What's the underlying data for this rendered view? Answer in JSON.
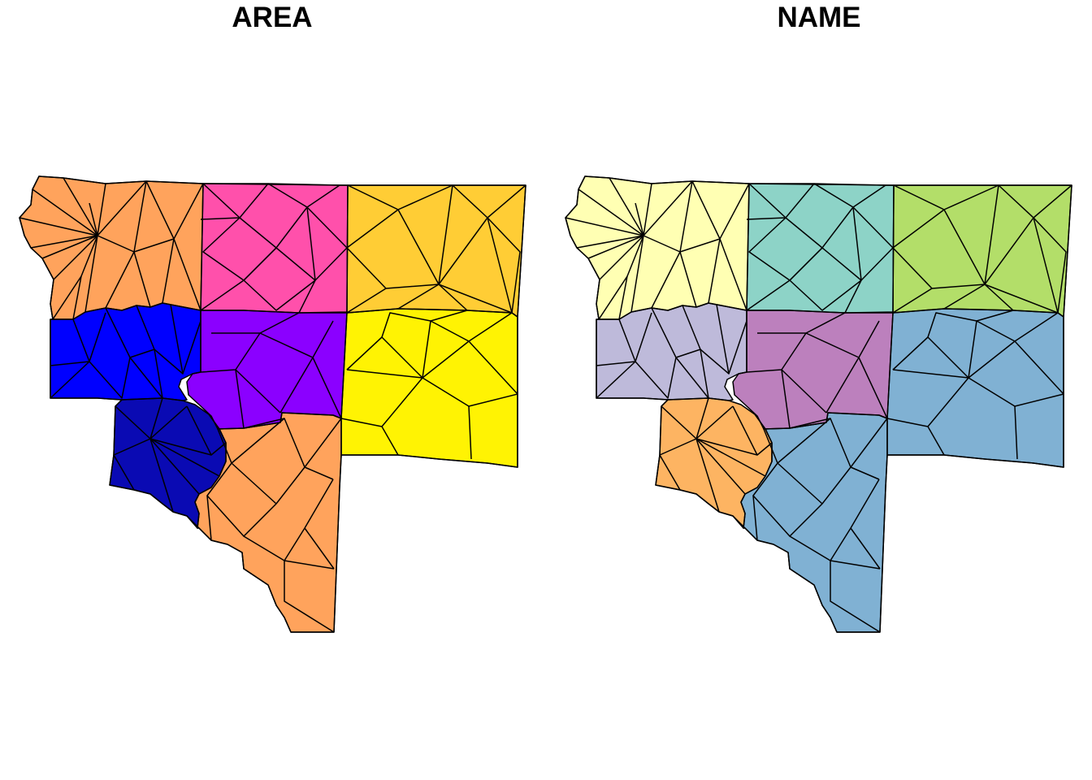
{
  "maps": [
    {
      "title": "AREA",
      "fills": {
        "west": "#FFA35C",
        "north_center": "#FF50AB",
        "northeast": "#FFCD35",
        "west_middle": "#0000FF",
        "center": "#8B00FF",
        "east": "#FFF303",
        "southwest": "#0A0AB3",
        "south": "#FFA35C"
      }
    },
    {
      "title": "NAME",
      "fills": {
        "west": "#FFFFB3",
        "north_center": "#8DD3C7",
        "northeast": "#B3DE69",
        "west_middle": "#BEBADA",
        "center": "#BC80BD",
        "east": "#80B1D3",
        "southwest": "#FDB462",
        "south": "#80B1D3"
      }
    }
  ]
}
